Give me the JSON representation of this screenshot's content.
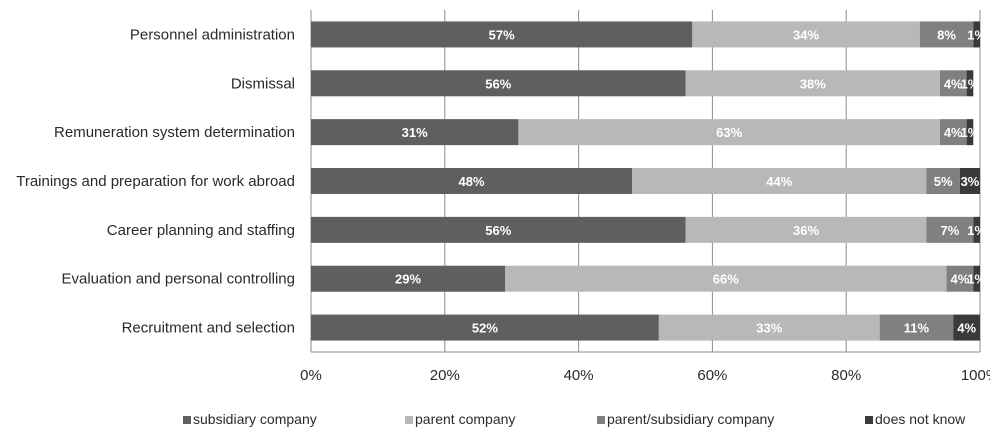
{
  "chart_data": {
    "type": "bar",
    "orientation": "horizontal",
    "stacked": true,
    "categories": [
      "Personnel administration",
      "Dismissal",
      "Remuneration system determination",
      "Trainings and preparation for work abroad",
      "Career planning and staffing",
      "Evaluation and personal controlling",
      "Recruitment and selection"
    ],
    "series": [
      {
        "name": "subsidiary company",
        "color": "#5f5f5f",
        "values": [
          57,
          56,
          31,
          48,
          56,
          29,
          52
        ],
        "labels": [
          "57%",
          "56%",
          "31%",
          "48%",
          "56%",
          "29%",
          "52%"
        ]
      },
      {
        "name": "parent company",
        "color": "#b8b8b8",
        "values": [
          34,
          38,
          63,
          44,
          36,
          66,
          33
        ],
        "labels": [
          "34%",
          "38%",
          "63%",
          "44%",
          "36%",
          "66%",
          "33%"
        ]
      },
      {
        "name": "parent/subsidiary company",
        "color": "#808080",
        "values": [
          8,
          4,
          4,
          5,
          7,
          4,
          11
        ],
        "labels": [
          "8%",
          "4%",
          "4%",
          "5%",
          "7%",
          "4%",
          "11%"
        ]
      },
      {
        "name": "does not know",
        "color": "#3a3a3a",
        "values": [
          1,
          1,
          1,
          3,
          1,
          1,
          4
        ],
        "labels": [
          "1%",
          "1%",
          "1%",
          "3%",
          "1%",
          "1%",
          "4%"
        ]
      }
    ],
    "xlim": [
      0,
      100
    ],
    "x_ticks": [
      "0%",
      "20%",
      "40%",
      "60%",
      "80%",
      "100%"
    ],
    "grid": "vertical",
    "legend_position": "bottom"
  }
}
